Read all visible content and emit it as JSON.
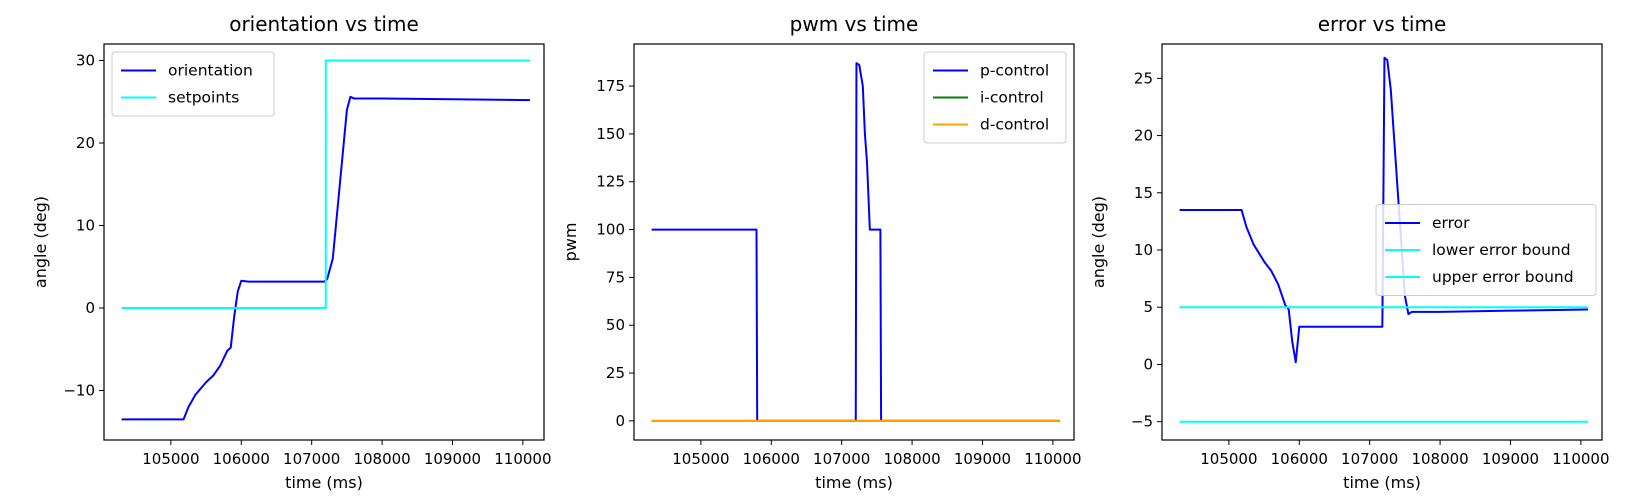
{
  "chart_data": [
    {
      "type": "line",
      "title": "orientation vs time",
      "xlabel": "time (ms)",
      "ylabel": "angle (deg)",
      "xlim": [
        104050,
        110300
      ],
      "ylim": [
        -16,
        32
      ],
      "xticks": [
        105000,
        106000,
        107000,
        108000,
        109000,
        110000
      ],
      "yticks": [
        -10,
        0,
        10,
        20,
        30
      ],
      "legend": "top-left",
      "grid": false,
      "series": [
        {
          "name": "orientation",
          "color": "#0000ff",
          "x": [
            104300,
            105180,
            105250,
            105350,
            105500,
            105600,
            105700,
            105800,
            105850,
            105900,
            105950,
            106000,
            106100,
            107000,
            107180,
            107220,
            107300,
            107400,
            107500,
            107550,
            107600,
            108000,
            109000,
            110100
          ],
          "y": [
            -13.5,
            -13.5,
            -12,
            -10.5,
            -9,
            -8.2,
            -7,
            -5.2,
            -4.8,
            -1,
            2,
            3.3,
            3.2,
            3.2,
            3.2,
            3.5,
            6,
            15,
            24,
            25.6,
            25.4,
            25.4,
            25.3,
            25.2
          ]
        },
        {
          "name": "setpoints",
          "color": "#00ffff",
          "x": [
            104300,
            107200,
            107200,
            110100
          ],
          "y": [
            0,
            0,
            30,
            30
          ]
        }
      ]
    },
    {
      "type": "line",
      "title": "pwm vs time",
      "xlabel": "time (ms)",
      "ylabel": "pwm",
      "xlim": [
        104050,
        110300
      ],
      "ylim": [
        -10,
        197
      ],
      "xticks": [
        105000,
        106000,
        107000,
        108000,
        109000,
        110000
      ],
      "yticks": [
        0,
        25,
        50,
        75,
        100,
        125,
        150,
        175
      ],
      "legend": "top-right",
      "grid": false,
      "series": [
        {
          "name": "p-control",
          "color": "#0000ff",
          "x": [
            104300,
            105790,
            105800,
            107200,
            107210,
            107250,
            107300,
            107330,
            107360,
            107400,
            107450,
            107500,
            107550,
            107560,
            110100
          ],
          "y": [
            100,
            100,
            0,
            0,
            187,
            186,
            175,
            150,
            135,
            100,
            100,
            100,
            100,
            0,
            0
          ]
        },
        {
          "name": "i-control",
          "color": "#008000",
          "x": [
            104300,
            110100
          ],
          "y": [
            0,
            0
          ]
        },
        {
          "name": "d-control",
          "color": "#ffa500",
          "x": [
            104300,
            110100
          ],
          "y": [
            0,
            0
          ]
        }
      ]
    },
    {
      "type": "line",
      "title": "error vs time",
      "xlabel": "time (ms)",
      "ylabel": "angle (deg)",
      "xlim": [
        104050,
        110300
      ],
      "ylim": [
        -6.6,
        28
      ],
      "xticks": [
        105000,
        106000,
        107000,
        108000,
        109000,
        110000
      ],
      "yticks": [
        -5,
        0,
        5,
        10,
        15,
        20,
        25
      ],
      "legend": "center-right",
      "grid": false,
      "series": [
        {
          "name": "error",
          "color": "#0000ff",
          "x": [
            104300,
            105180,
            105250,
            105350,
            105500,
            105600,
            105700,
            105800,
            105850,
            105900,
            105950,
            106000,
            106100,
            107180,
            107210,
            107250,
            107300,
            107400,
            107500,
            107550,
            107600,
            108000,
            109000,
            110100
          ],
          "y": [
            13.5,
            13.5,
            12,
            10.5,
            9,
            8.2,
            7,
            5.2,
            4.8,
            2,
            0.2,
            3.3,
            3.3,
            3.3,
            26.8,
            26.6,
            24,
            15,
            6,
            4.4,
            4.6,
            4.6,
            4.7,
            4.8
          ]
        },
        {
          "name": "lower error bound",
          "color": "#00ffff",
          "x": [
            104300,
            110100
          ],
          "y": [
            -5,
            -5
          ]
        },
        {
          "name": "upper error bound",
          "color": "#00ffff",
          "x": [
            104300,
            110100
          ],
          "y": [
            5,
            5
          ]
        }
      ]
    }
  ]
}
